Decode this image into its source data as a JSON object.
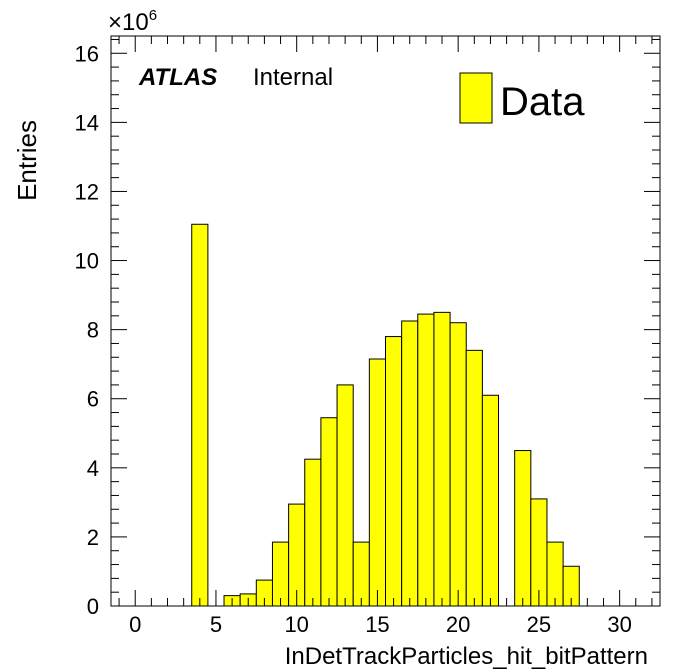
{
  "chart_data": {
    "type": "bar",
    "xlabel": "InDetTrackParticles_hit_bitPattern",
    "ylabel": "Entries",
    "multiplier_base": "×10",
    "multiplier_exp": "6",
    "xlim": [
      -1.5,
      32.5
    ],
    "ylim": [
      0,
      16.5
    ],
    "x_ticks": [
      0,
      5,
      10,
      15,
      20,
      25,
      30
    ],
    "x_tick_labels": [
      "0",
      "5",
      "10",
      "15",
      "20",
      "25",
      "30"
    ],
    "y_ticks": [
      0,
      2,
      4,
      6,
      8,
      10,
      12,
      14,
      16
    ],
    "y_tick_labels": [
      "0",
      "2",
      "4",
      "6",
      "8",
      "10",
      "12",
      "14",
      "16"
    ],
    "bin_width": 1,
    "bin_centers": [
      4,
      5,
      6,
      7,
      8,
      9,
      10,
      11,
      12,
      13,
      14,
      15,
      16,
      17,
      18,
      19,
      20,
      21,
      22,
      23,
      24,
      25,
      26,
      27
    ],
    "series": [
      {
        "name": "Data",
        "values": [
          11.05,
          0,
          0.3,
          0.35,
          0.75,
          1.85,
          2.95,
          4.25,
          5.45,
          6.4,
          1.85,
          7.15,
          7.8,
          8.25,
          8.45,
          8.5,
          8.2,
          7.4,
          6.1,
          0,
          4.5,
          3.1,
          1.85,
          1.15
        ]
      }
    ],
    "colors": {
      "fill": "#ffff00",
      "edge": "#000000"
    },
    "legend_position": "top-right",
    "grid": false
  },
  "label": {
    "experiment": "ATLAS",
    "status": "Internal"
  }
}
